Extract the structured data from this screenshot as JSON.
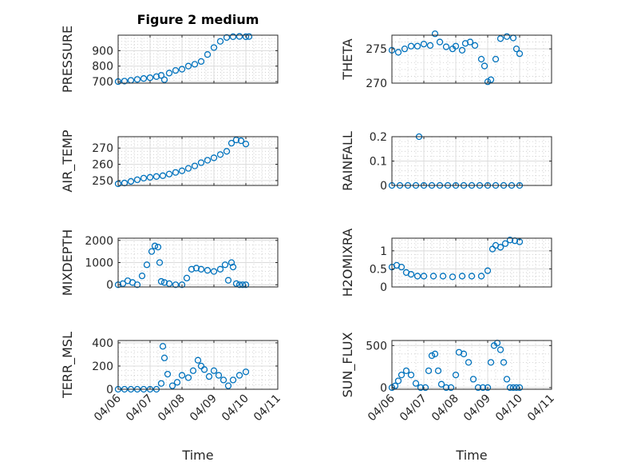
{
  "figure_title": "Figure 2 medium",
  "colors": {
    "marker": "#0072BD",
    "axis": "#262626",
    "grid": "#dcdcdc"
  },
  "chart_data": [
    {
      "id": "pressure",
      "type": "scatter",
      "title": "Figure 2 medium",
      "ylabel": "PRESSURE",
      "ylim": [
        690,
        1000
      ],
      "yticks": [
        700,
        800,
        900
      ],
      "ytick_labels": [
        "700",
        "800",
        "900"
      ],
      "xlim": [
        0,
        5
      ],
      "xtick_labels": [
        "04/06",
        "04/07",
        "04/08",
        "04/09",
        "04/10",
        "04/11"
      ],
      "xlabel": "",
      "series": [
        {
          "name": "PRESSURE",
          "x": [
            0,
            0.2,
            0.4,
            0.6,
            0.8,
            1.0,
            1.2,
            1.35,
            1.45,
            1.6,
            1.8,
            2.0,
            2.2,
            2.4,
            2.6,
            2.8,
            3.0,
            3.2,
            3.4,
            3.6,
            3.8,
            4.0,
            4.1
          ],
          "y": [
            700,
            703,
            708,
            714,
            720,
            725,
            732,
            740,
            712,
            755,
            772,
            780,
            800,
            812,
            830,
            875,
            920,
            960,
            985,
            990,
            992,
            990,
            991
          ]
        }
      ]
    },
    {
      "id": "theta",
      "type": "scatter",
      "ylabel": "THETA",
      "ylim": [
        270,
        277
      ],
      "yticks": [
        270,
        275
      ],
      "ytick_labels": [
        "270",
        "275"
      ],
      "xlim": [
        0,
        5
      ],
      "xtick_labels": [
        "04/06",
        "04/07",
        "04/08",
        "04/09",
        "04/10",
        "04/11"
      ],
      "xlabel": "",
      "series": [
        {
          "name": "THETA",
          "x": [
            0,
            0.2,
            0.4,
            0.6,
            0.8,
            1.0,
            1.2,
            1.35,
            1.5,
            1.7,
            1.9,
            2.0,
            2.2,
            2.3,
            2.45,
            2.6,
            2.8,
            2.9,
            3.0,
            3.1,
            3.25,
            3.4,
            3.6,
            3.8,
            3.9,
            4.0
          ],
          "y": [
            274.8,
            274.5,
            275.0,
            275.4,
            275.4,
            275.7,
            275.5,
            277.2,
            276.0,
            275.3,
            275.0,
            275.4,
            274.8,
            275.8,
            276.0,
            275.5,
            273.5,
            272.5,
            270.2,
            270.5,
            273.5,
            276.5,
            276.8,
            276.6,
            275.0,
            274.3
          ]
        }
      ]
    },
    {
      "id": "air_temp",
      "type": "scatter",
      "ylabel": "AIR_TEMP",
      "ylim": [
        247,
        277
      ],
      "yticks": [
        250,
        260,
        270
      ],
      "ytick_labels": [
        "250",
        "260",
        "270"
      ],
      "xlim": [
        0,
        5
      ],
      "xtick_labels": [
        "04/06",
        "04/07",
        "04/08",
        "04/09",
        "04/10",
        "04/11"
      ],
      "xlabel": "",
      "series": [
        {
          "name": "AIR_TEMP",
          "x": [
            0,
            0.2,
            0.4,
            0.6,
            0.8,
            1.0,
            1.2,
            1.4,
            1.6,
            1.8,
            2.0,
            2.2,
            2.4,
            2.6,
            2.8,
            3.0,
            3.2,
            3.4,
            3.55,
            3.7,
            3.85,
            4.0
          ],
          "y": [
            248,
            248.5,
            249.5,
            250.5,
            251.5,
            252,
            252.5,
            253,
            254,
            255,
            256,
            257.5,
            259,
            261,
            262.5,
            264,
            266,
            268,
            273,
            275,
            274.5,
            272.5
          ]
        }
      ]
    },
    {
      "id": "rainfall",
      "type": "scatter",
      "ylabel": "RAINFALL",
      "ylim": [
        0,
        0.2
      ],
      "yticks": [
        0,
        0.1,
        0.2
      ],
      "ytick_labels": [
        "0",
        "0.1",
        "0.2"
      ],
      "xlim": [
        0,
        5
      ],
      "xtick_labels": [
        "04/06",
        "04/07",
        "04/08",
        "04/09",
        "04/10",
        "04/11"
      ],
      "xlabel": "",
      "series": [
        {
          "name": "RAINFALL",
          "x": [
            0,
            0.25,
            0.5,
            0.75,
            1.0,
            1.25,
            1.5,
            1.75,
            2.0,
            2.25,
            2.5,
            2.75,
            3.0,
            3.25,
            3.5,
            3.75,
            4.0,
            0.85
          ],
          "y": [
            0,
            0,
            0,
            0,
            0,
            0,
            0,
            0,
            0,
            0,
            0,
            0,
            0,
            0,
            0,
            0,
            0,
            0.2
          ]
        }
      ]
    },
    {
      "id": "mixdepth",
      "type": "scatter",
      "ylabel": "MIXDEPTH",
      "ylim": [
        -100,
        2100
      ],
      "yticks": [
        0,
        1000,
        2000
      ],
      "ytick_labels": [
        "0",
        "1000",
        "2000"
      ],
      "xlim": [
        0,
        5
      ],
      "xtick_labels": [
        "04/06",
        "04/07",
        "04/08",
        "04/09",
        "04/10",
        "04/11"
      ],
      "xlabel": "",
      "series": [
        {
          "name": "MIXDEPTH",
          "x": [
            0,
            0.15,
            0.3,
            0.45,
            0.6,
            0.75,
            0.9,
            1.05,
            1.15,
            1.25,
            1.3,
            1.35,
            1.45,
            1.6,
            1.8,
            2.0,
            2.15,
            2.3,
            2.45,
            2.6,
            2.8,
            3.0,
            3.2,
            3.35,
            3.45,
            3.55,
            3.6,
            3.7,
            3.8,
            3.9,
            4.0
          ],
          "y": [
            0,
            50,
            180,
            100,
            0,
            400,
            900,
            1500,
            1750,
            1700,
            1000,
            150,
            100,
            50,
            0,
            0,
            300,
            700,
            750,
            700,
            650,
            600,
            700,
            900,
            200,
            1000,
            800,
            50,
            0,
            0,
            0
          ]
        }
      ]
    },
    {
      "id": "h2omixra",
      "type": "scatter",
      "ylabel": "H2OMIXRA",
      "ylim": [
        0,
        1.35
      ],
      "yticks": [
        0,
        0.5,
        1
      ],
      "ytick_labels": [
        "0",
        "0.5",
        "1"
      ],
      "xlim": [
        0,
        5
      ],
      "xtick_labels": [
        "04/06",
        "04/07",
        "04/08",
        "04/09",
        "04/10",
        "04/11"
      ],
      "xlabel": "",
      "series": [
        {
          "name": "H2OMIXRA",
          "x": [
            0,
            0.15,
            0.3,
            0.45,
            0.6,
            0.8,
            1.0,
            1.3,
            1.6,
            1.9,
            2.2,
            2.5,
            2.8,
            3.0,
            3.15,
            3.25,
            3.4,
            3.55,
            3.7,
            3.85,
            4.0
          ],
          "y": [
            0.55,
            0.6,
            0.55,
            0.4,
            0.35,
            0.3,
            0.3,
            0.3,
            0.3,
            0.28,
            0.3,
            0.3,
            0.3,
            0.45,
            1.05,
            1.15,
            1.1,
            1.2,
            1.3,
            1.28,
            1.25
          ]
        }
      ]
    },
    {
      "id": "terr_msl",
      "type": "scatter",
      "ylabel": "TERR_MSL",
      "ylim": [
        0,
        420
      ],
      "yticks": [
        0,
        200,
        400
      ],
      "ytick_labels": [
        "0",
        "200",
        "400"
      ],
      "xlim": [
        0,
        5
      ],
      "xtick_labels": [
        "04/06",
        "04/07",
        "04/08",
        "04/09",
        "04/10",
        "04/11"
      ],
      "xlabel": "Time",
      "series": [
        {
          "name": "TERR_MSL",
          "x": [
            0,
            0.2,
            0.4,
            0.6,
            0.8,
            1.0,
            1.2,
            1.35,
            1.4,
            1.45,
            1.55,
            1.7,
            1.85,
            2.0,
            2.2,
            2.35,
            2.5,
            2.6,
            2.7,
            2.85,
            3.0,
            3.15,
            3.3,
            3.45,
            3.6,
            3.8,
            4.0
          ],
          "y": [
            0,
            0,
            0,
            0,
            0,
            0,
            0,
            50,
            370,
            270,
            130,
            30,
            60,
            120,
            100,
            160,
            250,
            200,
            170,
            110,
            160,
            120,
            80,
            30,
            80,
            120,
            150
          ]
        }
      ]
    },
    {
      "id": "sun_flux",
      "type": "scatter",
      "ylabel": "SUN_FLUX",
      "ylim": [
        -20,
        560
      ],
      "yticks": [
        0,
        500
      ],
      "ytick_labels": [
        "0",
        "500"
      ],
      "xlim": [
        0,
        5
      ],
      "xtick_labels": [
        "04/06",
        "04/07",
        "04/08",
        "04/09",
        "04/10",
        "04/11"
      ],
      "xlabel": "Time",
      "series": [
        {
          "name": "SUN_FLUX",
          "x": [
            0,
            0.1,
            0.2,
            0.3,
            0.45,
            0.6,
            0.75,
            0.9,
            1.05,
            1.15,
            1.25,
            1.35,
            1.45,
            1.55,
            1.7,
            1.85,
            2.0,
            2.1,
            2.25,
            2.4,
            2.55,
            2.7,
            2.85,
            3.0,
            3.1,
            3.2,
            3.3,
            3.4,
            3.5,
            3.6,
            3.7,
            3.8,
            3.9,
            4.0
          ],
          "y": [
            0,
            20,
            80,
            150,
            200,
            150,
            50,
            0,
            0,
            200,
            380,
            400,
            200,
            40,
            0,
            0,
            150,
            420,
            400,
            300,
            100,
            0,
            0,
            0,
            300,
            500,
            530,
            450,
            300,
            100,
            0,
            0,
            0,
            0
          ]
        }
      ]
    }
  ]
}
